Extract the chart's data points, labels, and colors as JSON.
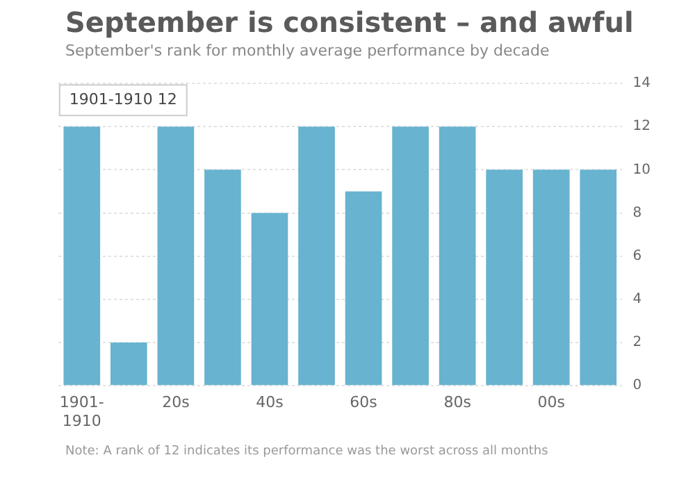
{
  "chart_data": {
    "type": "bar",
    "title": "September is consistent – and awful",
    "subtitle": "September's rank for monthly average performance by decade",
    "categories": [
      "1901-1910",
      null,
      "20s",
      null,
      "40s",
      null,
      "60s",
      null,
      "80s",
      null,
      "00s",
      null
    ],
    "values": [
      12,
      2,
      12,
      10,
      8,
      12,
      9,
      12,
      12,
      10,
      10,
      10
    ],
    "color": "#67b3d0",
    "ylim": [
      0,
      14
    ],
    "yticks": [
      0,
      2,
      4,
      6,
      8,
      10,
      12,
      14
    ],
    "grid": "y",
    "annotations": [
      {
        "text": "1901-1910 12",
        "x": "1901-1910",
        "y": 12
      },
      "Note: A rank of 12 indicates its performance was the worst across all months"
    ]
  }
}
